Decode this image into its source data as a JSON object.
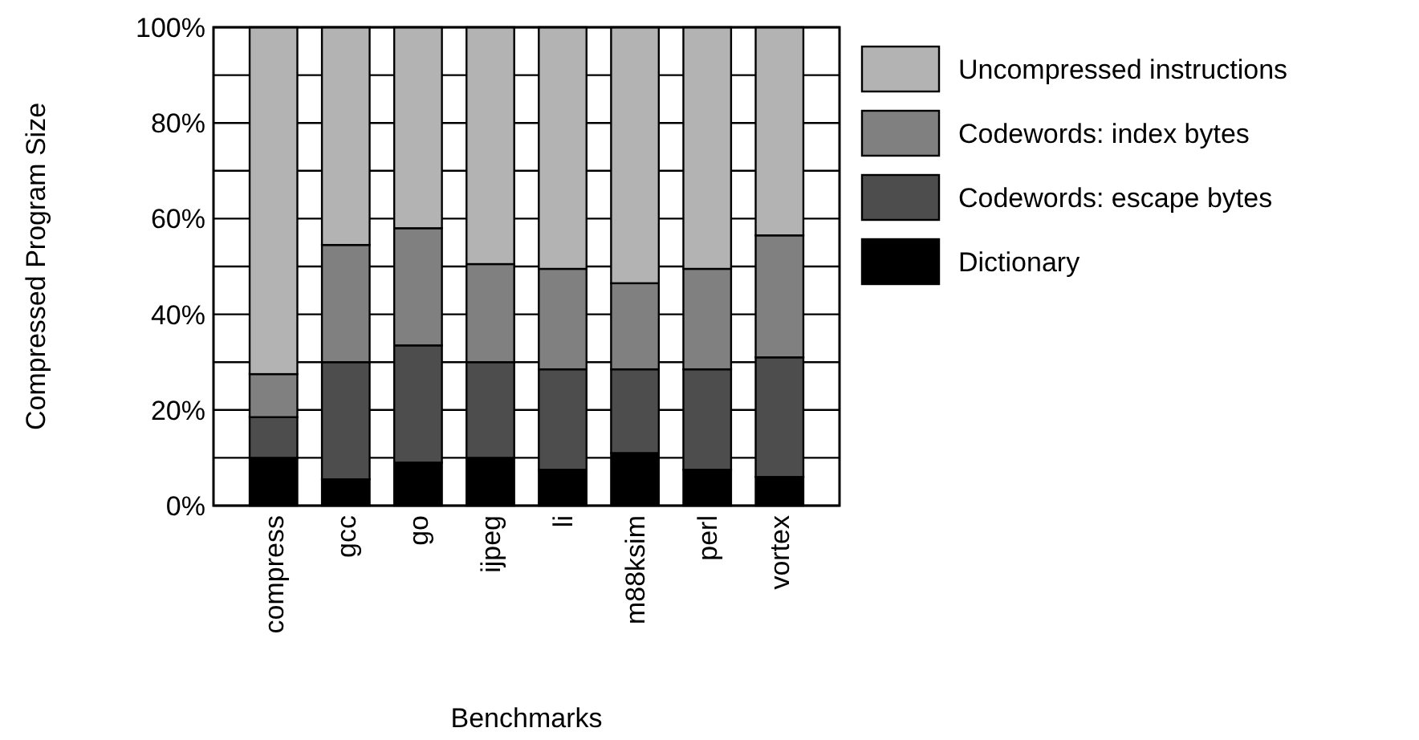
{
  "chart_data": {
    "type": "bar",
    "stacked": true,
    "xlabel": "Benchmarks",
    "ylabel": "Compressed Program Size",
    "categories": [
      "compress",
      "gcc",
      "go",
      "ijpeg",
      "li",
      "m88ksim",
      "perl",
      "vortex"
    ],
    "series": [
      {
        "name": "Dictionary",
        "color": "#000000",
        "values": [
          10,
          5.5,
          9,
          10,
          7.5,
          11,
          7.5,
          6
        ]
      },
      {
        "name": "Codewords: escape bytes",
        "color": "#4d4d4d",
        "values": [
          8.5,
          24.5,
          24.5,
          20,
          21,
          17.5,
          21,
          25
        ]
      },
      {
        "name": "Codewords: index bytes",
        "color": "#808080",
        "values": [
          9,
          24.5,
          24.5,
          20.5,
          21,
          18,
          21,
          25.5
        ]
      },
      {
        "name": "Uncompressed instructions",
        "color": "#b3b3b3",
        "values": [
          72.5,
          45.5,
          42,
          49.5,
          50.5,
          53.5,
          50.5,
          43.5
        ]
      }
    ],
    "ylim": [
      0,
      100
    ],
    "yticks": [
      {
        "value": 0,
        "label": "0%"
      },
      {
        "value": 10,
        "label": null
      },
      {
        "value": 20,
        "label": "20%"
      },
      {
        "value": 30,
        "label": null
      },
      {
        "value": 40,
        "label": "40%"
      },
      {
        "value": 50,
        "label": null
      },
      {
        "value": 60,
        "label": "60%"
      },
      {
        "value": 70,
        "label": null
      },
      {
        "value": 80,
        "label": "80%"
      },
      {
        "value": 90,
        "label": null
      },
      {
        "value": 100,
        "label": "100%"
      }
    ],
    "grid": "y",
    "legend": "right"
  }
}
